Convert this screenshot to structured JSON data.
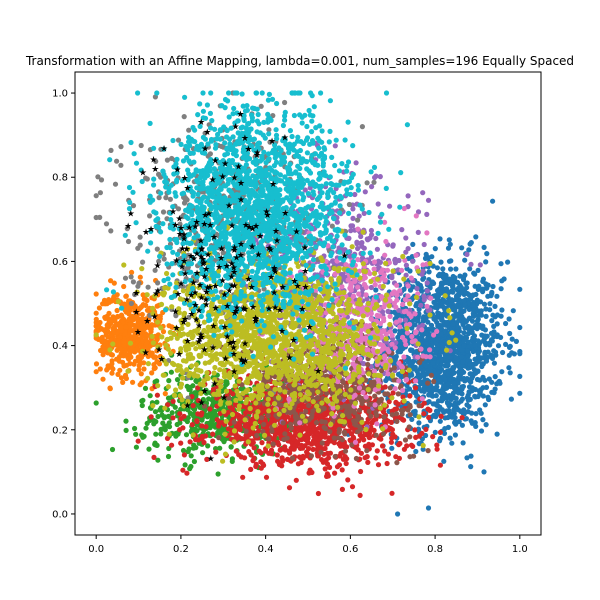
{
  "chart_data": {
    "type": "scatter",
    "title": "Transformation with an Affine Mapping, lambda=0.001, num_samples=196 Equally Spaced",
    "xlabel": "",
    "ylabel": "",
    "xlim": [
      -0.05,
      1.05
    ],
    "ylim": [
      -0.05,
      1.05
    ],
    "xticks": [
      "0.0",
      "0.2",
      "0.4",
      "0.6",
      "0.8",
      "1.0"
    ],
    "yticks": [
      "0.0",
      "0.2",
      "0.4",
      "0.6",
      "0.8",
      "1.0"
    ],
    "grid": false,
    "legend": "none",
    "series": [
      {
        "color": "#1f77b4",
        "marker": "circle",
        "cloud": {
          "cx": 0.82,
          "cy": 0.4,
          "sx": 0.07,
          "sy": 0.1,
          "n": 1400
        }
      },
      {
        "color": "#ff7f0e",
        "marker": "circle",
        "cloud": {
          "cx": 0.08,
          "cy": 0.43,
          "sx": 0.04,
          "sy": 0.05,
          "n": 500
        }
      },
      {
        "color": "#2ca02c",
        "marker": "circle",
        "cloud": {
          "cx": 0.28,
          "cy": 0.24,
          "sx": 0.09,
          "sy": 0.05,
          "n": 500
        }
      },
      {
        "color": "#d62728",
        "marker": "circle",
        "cloud": {
          "cx": 0.5,
          "cy": 0.22,
          "sx": 0.12,
          "sy": 0.05,
          "n": 1200
        }
      },
      {
        "color": "#9467bd",
        "marker": "circle",
        "cloud": {
          "cx": 0.58,
          "cy": 0.55,
          "sx": 0.1,
          "sy": 0.12,
          "n": 500
        }
      },
      {
        "color": "#8c564b",
        "marker": "circle",
        "cloud": {
          "cx": 0.55,
          "cy": 0.3,
          "sx": 0.1,
          "sy": 0.06,
          "n": 500
        }
      },
      {
        "color": "#e377c2",
        "marker": "circle",
        "cloud": {
          "cx": 0.62,
          "cy": 0.45,
          "sx": 0.08,
          "sy": 0.1,
          "n": 450
        }
      },
      {
        "color": "#7f7f7f",
        "marker": "circle",
        "cloud": {
          "cx": 0.3,
          "cy": 0.7,
          "sx": 0.12,
          "sy": 0.12,
          "n": 500
        }
      },
      {
        "color": "#bcbd22",
        "marker": "circle",
        "cloud": {
          "cx": 0.42,
          "cy": 0.42,
          "sx": 0.13,
          "sy": 0.09,
          "n": 1500
        }
      },
      {
        "color": "#17becf",
        "marker": "circle",
        "cloud": {
          "cx": 0.38,
          "cy": 0.72,
          "sx": 0.11,
          "sy": 0.12,
          "n": 1800
        }
      },
      {
        "color": "#000000",
        "marker": "star",
        "cloud": {
          "cx": 0.3,
          "cy": 0.58,
          "sx": 0.1,
          "sy": 0.16,
          "n": 196
        }
      }
    ]
  }
}
